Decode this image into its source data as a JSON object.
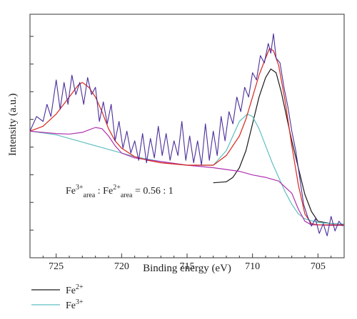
{
  "chart_data": {
    "type": "line",
    "xlabel": "Binding energy (eV)",
    "ylabel": "Intensity (a.u.)",
    "xlim": [
      727,
      703
    ],
    "ylim": [
      0,
      100
    ],
    "x_reversed": true,
    "y_ticks_labeled": false,
    "x_ticks": [
      "725",
      "720",
      "715",
      "710",
      "705"
    ],
    "x_tick_values": [
      725,
      720,
      715,
      710,
      705
    ],
    "annotation": {
      "parts": [
        "Fe",
        "3+",
        "area",
        " : Fe",
        "2+",
        "area",
        " = 0.56 : 1"
      ]
    },
    "legend": {
      "placement": "below",
      "entries": [
        {
          "label_base": "Fe",
          "label_sup": "2+",
          "color": "#1a1a1a"
        },
        {
          "label_base": "Fe",
          "label_sup": "3+",
          "color": "#5fbfbf"
        }
      ]
    },
    "series": [
      {
        "name": "Fe2+",
        "color": "#1a1a1a",
        "points": [
          [
            713,
            30.8
          ],
          [
            712,
            31.2
          ],
          [
            711.5,
            33
          ],
          [
            711,
            37
          ],
          [
            710.5,
            44
          ],
          [
            710,
            55
          ],
          [
            709.5,
            66
          ],
          [
            709,
            74
          ],
          [
            708.6,
            77.5
          ],
          [
            708.2,
            76
          ],
          [
            707.8,
            68
          ],
          [
            707.4,
            58
          ],
          [
            707,
            48
          ],
          [
            706.5,
            37
          ],
          [
            706,
            26
          ],
          [
            705.5,
            19
          ],
          [
            705,
            15
          ],
          [
            704,
            14
          ],
          [
            703,
            13.8
          ]
        ]
      },
      {
        "name": "Fe3+",
        "color": "#5fbfbf",
        "points": [
          [
            727,
            52
          ],
          [
            725,
            50.5
          ],
          [
            723,
            47.5
          ],
          [
            721,
            44.5
          ],
          [
            719,
            41.5
          ],
          [
            717,
            39.5
          ],
          [
            715,
            38
          ],
          [
            713,
            38
          ],
          [
            712,
            44
          ],
          [
            711,
            56
          ],
          [
            710.4,
            59
          ],
          [
            710,
            58
          ],
          [
            709.5,
            53
          ],
          [
            709,
            46
          ],
          [
            708.5,
            39
          ],
          [
            708,
            33
          ],
          [
            707.5,
            27
          ],
          [
            707,
            22
          ],
          [
            706.5,
            18
          ],
          [
            706,
            16
          ],
          [
            705,
            14.5
          ],
          [
            704,
            14
          ],
          [
            703,
            13.8
          ]
        ]
      },
      {
        "name": "",
        "color": "#b030b0",
        "points": [
          [
            727,
            52
          ],
          [
            725,
            51
          ],
          [
            724,
            50.8
          ],
          [
            723,
            51.5
          ],
          [
            722,
            53.5
          ],
          [
            721.5,
            53
          ],
          [
            721,
            50
          ],
          [
            720.5,
            46
          ],
          [
            720,
            43
          ],
          [
            719,
            41
          ],
          [
            717,
            39.5
          ],
          [
            715,
            38
          ],
          [
            713,
            37
          ],
          [
            711,
            35.5
          ],
          [
            710,
            34
          ],
          [
            709,
            33
          ],
          [
            708,
            31.5
          ],
          [
            707,
            26.5
          ],
          [
            706.5,
            20
          ],
          [
            706,
            15
          ],
          [
            705.5,
            13.5
          ],
          [
            705,
            13.5
          ],
          [
            704,
            13.3
          ],
          [
            703,
            13.3
          ]
        ]
      },
      {
        "name": "",
        "color": "#d9261c",
        "points": [
          [
            727,
            52
          ],
          [
            726,
            54
          ],
          [
            725,
            59
          ],
          [
            724,
            66
          ],
          [
            723.3,
            71
          ],
          [
            723,
            72
          ],
          [
            722.5,
            70
          ],
          [
            722,
            66
          ],
          [
            721.5,
            60
          ],
          [
            721,
            53
          ],
          [
            720.5,
            48
          ],
          [
            720,
            45
          ],
          [
            719,
            41.5
          ],
          [
            718,
            40
          ],
          [
            717,
            39
          ],
          [
            715,
            38
          ],
          [
            713,
            38
          ],
          [
            712,
            42
          ],
          [
            711,
            50
          ],
          [
            710.5,
            57
          ],
          [
            710,
            66
          ],
          [
            709.5,
            75
          ],
          [
            709,
            82
          ],
          [
            708.7,
            86
          ],
          [
            708.4,
            85
          ],
          [
            708,
            79
          ],
          [
            707.5,
            64
          ],
          [
            707,
            46
          ],
          [
            706.5,
            30
          ],
          [
            706,
            18
          ],
          [
            705.5,
            14
          ],
          [
            705,
            13.5
          ],
          [
            704,
            13.5
          ],
          [
            703,
            13.5
          ]
        ]
      },
      {
        "name": "",
        "color": "#4b2e9a",
        "points": [
          [
            727,
            52
          ],
          [
            726.5,
            58
          ],
          [
            726,
            56
          ],
          [
            725.7,
            63
          ],
          [
            725.4,
            58
          ],
          [
            725,
            73
          ],
          [
            724.7,
            61
          ],
          [
            724.4,
            72
          ],
          [
            724.1,
            63
          ],
          [
            723.8,
            75
          ],
          [
            723.5,
            67
          ],
          [
            723.2,
            72
          ],
          [
            722.9,
            63
          ],
          [
            722.6,
            74
          ],
          [
            722.3,
            67
          ],
          [
            722,
            70
          ],
          [
            721.7,
            56
          ],
          [
            721.4,
            64
          ],
          [
            721.1,
            55
          ],
          [
            720.8,
            63
          ],
          [
            720.5,
            48
          ],
          [
            720.2,
            56
          ],
          [
            719.9,
            45
          ],
          [
            719.6,
            52
          ],
          [
            719.3,
            43
          ],
          [
            719,
            48
          ],
          [
            718.7,
            40
          ],
          [
            718.4,
            51
          ],
          [
            718.1,
            39
          ],
          [
            717.8,
            49
          ],
          [
            717.5,
            41
          ],
          [
            717.2,
            54
          ],
          [
            716.9,
            42
          ],
          [
            716.6,
            51
          ],
          [
            716.3,
            40
          ],
          [
            716,
            48
          ],
          [
            715.7,
            42
          ],
          [
            715.4,
            56
          ],
          [
            715.1,
            40
          ],
          [
            714.8,
            50
          ],
          [
            714.5,
            39
          ],
          [
            714.2,
            48
          ],
          [
            713.9,
            38
          ],
          [
            713.6,
            55
          ],
          [
            713.3,
            40
          ],
          [
            713,
            52
          ],
          [
            712.7,
            42
          ],
          [
            712.4,
            58
          ],
          [
            712.1,
            48
          ],
          [
            711.8,
            60
          ],
          [
            711.5,
            55
          ],
          [
            711.2,
            66
          ],
          [
            710.9,
            60
          ],
          [
            710.6,
            70
          ],
          [
            710.3,
            66
          ],
          [
            710,
            76
          ],
          [
            709.7,
            73
          ],
          [
            709.4,
            83
          ],
          [
            709.1,
            80
          ],
          [
            708.8,
            88
          ],
          [
            708.6,
            84
          ],
          [
            708.4,
            92
          ],
          [
            708.2,
            82
          ],
          [
            707.9,
            80
          ],
          [
            707.6,
            70
          ],
          [
            707.3,
            62
          ],
          [
            707,
            52
          ],
          [
            706.7,
            44
          ],
          [
            706.4,
            33
          ],
          [
            706.1,
            22
          ],
          [
            705.8,
            17
          ],
          [
            705.5,
            13
          ],
          [
            705.2,
            16
          ],
          [
            704.9,
            10
          ],
          [
            704.6,
            14
          ],
          [
            704.3,
            9
          ],
          [
            704,
            17
          ],
          [
            703.7,
            11
          ],
          [
            703.4,
            15
          ],
          [
            703.1,
            13
          ]
        ]
      }
    ]
  }
}
